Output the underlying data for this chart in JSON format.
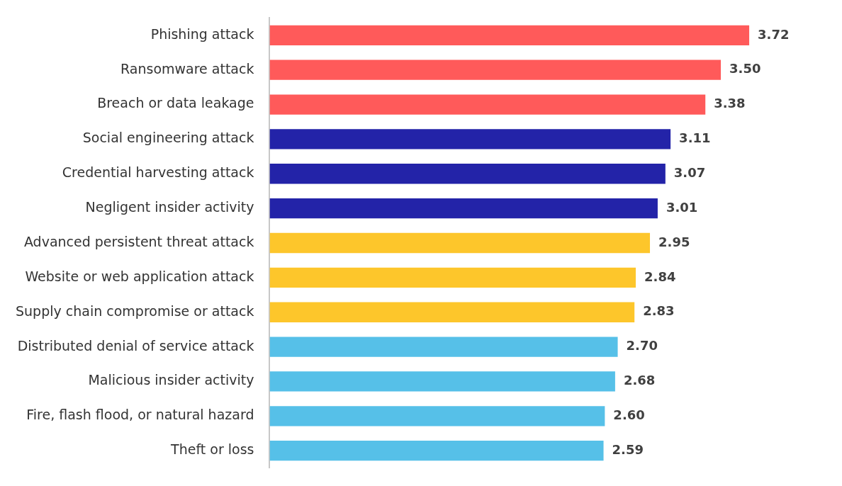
{
  "chart_data": {
    "type": "bar",
    "orientation": "horizontal",
    "categories": [
      "Phishing attack",
      "Ransomware attack",
      "Breach or data leakage",
      "Social engineering attack",
      "Credential harvesting attack",
      "Negligent insider activity",
      "Advanced persistent threat attack",
      "Website or web application attack",
      "Supply chain compromise or attack",
      "Distributed denial of service attack",
      "Malicious insider activity",
      "Fire, flash flood, or natural hazard",
      "Theft or loss"
    ],
    "values": [
      3.72,
      3.5,
      3.38,
      3.11,
      3.07,
      3.01,
      2.95,
      2.84,
      2.83,
      2.7,
      2.68,
      2.6,
      2.59
    ],
    "value_labels": [
      "3.72",
      "3.50",
      "3.38",
      "3.11",
      "3.07",
      "3.01",
      "2.95",
      "2.84",
      "2.83",
      "2.70",
      "2.68",
      "2.60",
      "2.59"
    ],
    "colors": [
      "#ff5a5a",
      "#ff5a5a",
      "#ff5a5a",
      "#2323a8",
      "#2323a8",
      "#2323a8",
      "#fdc62b",
      "#fdc62b",
      "#fdc62b",
      "#56c0e8",
      "#56c0e8",
      "#56c0e8",
      "#56c0e8"
    ],
    "legend": false
  }
}
